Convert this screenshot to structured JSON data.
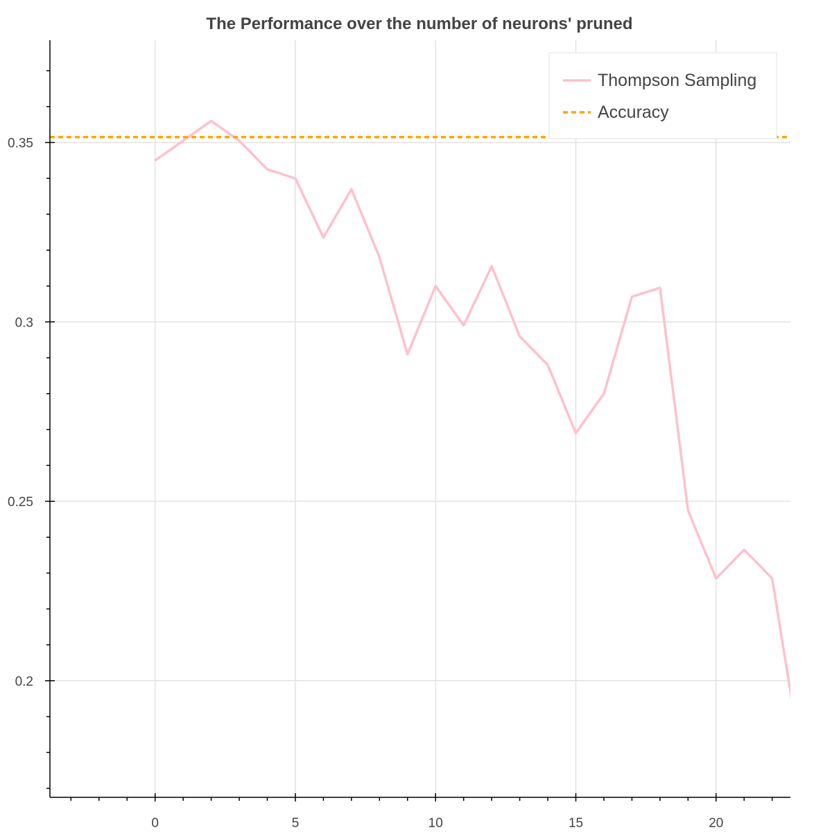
{
  "chart_data": {
    "type": "line",
    "title": "The Performance over the number of neurons' pruned",
    "xlabel": "",
    "ylabel": "",
    "xlim": [
      -3.75,
      22.65
    ],
    "ylim": [
      0.1675,
      0.3785
    ],
    "x_ticks": [
      0,
      5,
      10,
      15,
      20
    ],
    "x_tick_labels": [
      "0",
      "5",
      "10",
      "15",
      "20"
    ],
    "x_minor_ticks": [
      -3,
      -2,
      -1,
      1,
      2,
      3,
      4,
      6,
      7,
      8,
      9,
      11,
      12,
      13,
      14,
      16,
      17,
      18,
      19,
      21,
      22
    ],
    "y_ticks": [
      0.2,
      0.25,
      0.3,
      0.35
    ],
    "y_tick_labels": [
      "0.2",
      "0.25",
      "0.3",
      "0.35"
    ],
    "y_minor_ticks": [
      0.17,
      0.18,
      0.19,
      0.21,
      0.22,
      0.23,
      0.24,
      0.26,
      0.27,
      0.28,
      0.29,
      0.31,
      0.32,
      0.33,
      0.34,
      0.36,
      0.37
    ],
    "grid": true,
    "legend_position": "top-right",
    "series": [
      {
        "name": "Thompson Sampling",
        "style": "solid",
        "color": "#ffc0cb",
        "x": [
          0,
          1,
          2,
          3,
          4,
          5,
          6,
          7,
          8,
          9,
          10,
          11,
          12,
          13,
          14,
          15,
          16,
          17,
          18,
          19,
          20,
          21,
          22,
          23
        ],
        "y": [
          0.345,
          0.3505,
          0.356,
          0.3505,
          0.3425,
          0.34,
          0.3235,
          0.337,
          0.318,
          0.291,
          0.31,
          0.299,
          0.3155,
          0.296,
          0.288,
          0.269,
          0.28,
          0.307,
          0.3095,
          0.2475,
          0.2285,
          0.2365,
          0.2285,
          0.18
        ]
      },
      {
        "name": "Accuracy",
        "style": "dashed",
        "color": "#ffa500",
        "x": [
          -3.75,
          22.65
        ],
        "y": [
          0.3515,
          0.3515
        ]
      }
    ]
  }
}
